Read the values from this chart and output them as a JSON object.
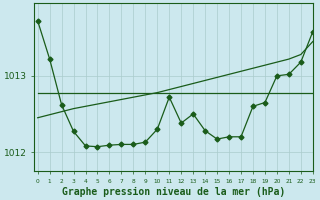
{
  "background_color": "#cce8ee",
  "plot_bg_color": "#cce8ee",
  "grid_color": "#aacccc",
  "line_color": "#1a5c1a",
  "marker_color": "#1a5c1a",
  "xlabel": "Graphe pression niveau de la mer (hPa)",
  "xlabel_fontsize": 7,
  "hours": [
    0,
    1,
    2,
    3,
    4,
    5,
    6,
    7,
    8,
    9,
    10,
    11,
    12,
    13,
    14,
    15,
    16,
    17,
    18,
    19,
    20,
    21,
    22,
    23
  ],
  "pressure_jagged": [
    1013.72,
    1013.22,
    1012.62,
    1012.27,
    1012.08,
    1012.07,
    1012.09,
    1012.1,
    1012.1,
    1012.13,
    1012.3,
    1012.72,
    1012.38,
    1012.5,
    1012.28,
    1012.17,
    1012.2,
    1012.2,
    1012.6,
    1012.65,
    1013.0,
    1013.02,
    1013.18,
    1013.58
  ],
  "pressure_smooth": [
    1012.77,
    1012.77,
    1012.77,
    1012.77,
    1012.77,
    1012.77,
    1012.77,
    1012.77,
    1012.77,
    1012.77,
    1012.77,
    1012.77,
    1012.77,
    1012.77,
    1012.77,
    1012.77,
    1012.77,
    1012.77,
    1012.77,
    1012.77,
    1012.77,
    1012.77,
    1012.77,
    1012.77
  ],
  "pressure_trend": [
    1012.45,
    1012.49,
    1012.53,
    1012.57,
    1012.6,
    1012.63,
    1012.66,
    1012.69,
    1012.72,
    1012.75,
    1012.78,
    1012.82,
    1012.86,
    1012.9,
    1012.94,
    1012.98,
    1013.02,
    1013.06,
    1013.1,
    1013.14,
    1013.18,
    1013.22,
    1013.28,
    1013.45
  ],
  "ylim_min": 1011.75,
  "ylim_max": 1013.95,
  "yticks": [
    1012,
    1013
  ],
  "xlim_min": -0.3,
  "xlim_max": 23
}
